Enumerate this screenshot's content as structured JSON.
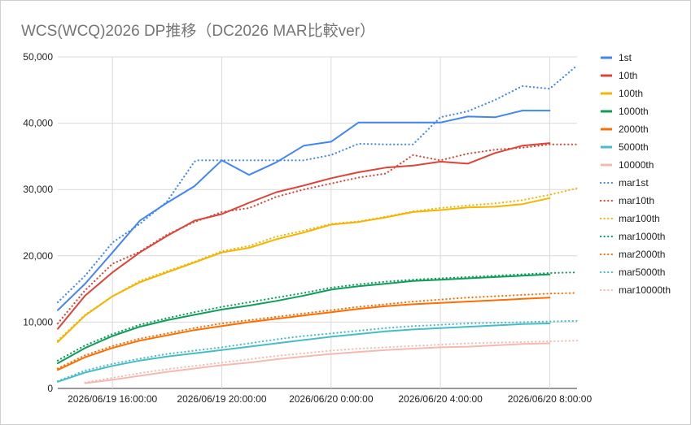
{
  "chart_data": {
    "type": "line",
    "title": "WCS(WCQ)2026 DP推移（DC2026 MAR比較ver）",
    "xlabel": "",
    "ylabel": "",
    "ylim": [
      0,
      50000
    ],
    "y_ticks": [
      "0",
      "10,000",
      "20,000",
      "30,000",
      "40,000",
      "50,000"
    ],
    "y_tick_values": [
      0,
      10000,
      20000,
      30000,
      40000,
      50000
    ],
    "x_range_hours": [
      0,
      19
    ],
    "x_tick_labels": [
      "2026/06/19 16:00:00",
      "2026/06/19 20:00:00",
      "2026/06/20 0:00:00",
      "2026/06/20 4:00:00",
      "2026/06/20 8:00:00"
    ],
    "x_tick_hours": [
      2,
      6,
      10,
      14,
      18
    ],
    "x_axis_start": "2026/06/19 14:00:00",
    "grid": true,
    "legend_position": "right",
    "series": [
      {
        "name": "1st",
        "color": "#4285f4",
        "style": "solid",
        "x": [
          0,
          1,
          2,
          3,
          4,
          5,
          6,
          7,
          8,
          9,
          10,
          11,
          12,
          13,
          14,
          15,
          16,
          17,
          18
        ],
        "y": [
          11800,
          15800,
          20500,
          25300,
          28000,
          30500,
          34400,
          32200,
          34100,
          36600,
          37200,
          40100,
          40100,
          40100,
          40100,
          41000,
          40900,
          41900,
          41900
        ]
      },
      {
        "name": "10th",
        "color": "#db4437",
        "style": "solid",
        "x": [
          0,
          1,
          2,
          3,
          4,
          5,
          6,
          7,
          8,
          9,
          10,
          11,
          12,
          13,
          14,
          15,
          16,
          17,
          18
        ],
        "y": [
          9000,
          14000,
          17500,
          20500,
          23000,
          25300,
          26300,
          28000,
          29600,
          30600,
          31700,
          32600,
          33300,
          33600,
          34200,
          33900,
          35500,
          36600,
          37000
        ]
      },
      {
        "name": "100th",
        "color": "#f4b400",
        "style": "solid",
        "x": [
          0,
          1,
          2,
          3,
          4,
          5,
          6,
          7,
          8,
          9,
          10,
          11,
          12,
          13,
          14,
          15,
          16,
          17,
          18
        ],
        "y": [
          7000,
          11000,
          13900,
          16000,
          17500,
          19000,
          20500,
          21200,
          22500,
          23500,
          24700,
          25100,
          25800,
          26600,
          26900,
          27300,
          27400,
          27800,
          28700
        ]
      },
      {
        "name": "1000th",
        "color": "#0f9d58",
        "style": "solid",
        "x": [
          0,
          1,
          2,
          3,
          4,
          5,
          6,
          7,
          8,
          9,
          10,
          11,
          12,
          13,
          14,
          15,
          16,
          17,
          18
        ],
        "y": [
          3800,
          6100,
          7900,
          9300,
          10300,
          11100,
          11900,
          12500,
          13200,
          14000,
          14900,
          15400,
          15800,
          16200,
          16400,
          16600,
          16800,
          17000,
          17200
        ]
      },
      {
        "name": "2000th",
        "color": "#ff6d01",
        "style": "solid",
        "x": [
          0,
          1,
          2,
          3,
          4,
          5,
          6,
          7,
          8,
          9,
          10,
          11,
          12,
          13,
          14,
          15,
          16,
          17,
          18
        ],
        "y": [
          2800,
          4700,
          6100,
          7200,
          8000,
          8800,
          9400,
          10000,
          10500,
          11000,
          11500,
          12000,
          12400,
          12700,
          12900,
          13100,
          13300,
          13500,
          13700
        ]
      },
      {
        "name": "5000th",
        "color": "#46bdc6",
        "style": "solid",
        "x": [
          0,
          1,
          2,
          3,
          4,
          5,
          6,
          7,
          8,
          9,
          10,
          11,
          12,
          13,
          14,
          15,
          16,
          17,
          18
        ],
        "y": [
          1000,
          2400,
          3400,
          4200,
          4800,
          5300,
          5800,
          6300,
          6800,
          7300,
          7800,
          8200,
          8600,
          8900,
          9100,
          9300,
          9500,
          9700,
          9800
        ]
      },
      {
        "name": "10000th",
        "color": "#f4b9b1",
        "style": "solid",
        "x": [
          1,
          2,
          3,
          4,
          5,
          6,
          7,
          8,
          9,
          10,
          11,
          12,
          13,
          14,
          15,
          16,
          17,
          18
        ],
        "y": [
          800,
          1300,
          1900,
          2500,
          3000,
          3500,
          3900,
          4400,
          4800,
          5200,
          5500,
          5800,
          6000,
          6200,
          6300,
          6500,
          6700,
          6800
        ]
      },
      {
        "name": "mar1st",
        "color": "#4285f4",
        "style": "dotted",
        "x": [
          0,
          1,
          2,
          3,
          4,
          5,
          5.1,
          6,
          7,
          8,
          9,
          10,
          11,
          12,
          13,
          14,
          15,
          16,
          17,
          18,
          19
        ],
        "y": [
          13000,
          17000,
          22000,
          24800,
          28200,
          34200,
          34400,
          34400,
          34400,
          34400,
          34400,
          35200,
          36900,
          36800,
          36800,
          40900,
          41800,
          43500,
          45600,
          45200,
          48700
        ]
      },
      {
        "name": "mar10th",
        "color": "#db4437",
        "style": "dotted",
        "x": [
          0,
          1,
          2,
          3,
          4,
          5,
          6,
          7,
          8,
          9,
          10,
          11,
          12,
          13,
          14,
          15,
          16,
          17,
          18,
          19
        ],
        "y": [
          9800,
          14800,
          18800,
          20600,
          23200,
          25100,
          26600,
          27200,
          28900,
          30000,
          30900,
          31800,
          32400,
          35200,
          34400,
          35400,
          36000,
          36300,
          36800,
          36800
        ]
      },
      {
        "name": "mar100th",
        "color": "#f4b400",
        "style": "dotted",
        "x": [
          0,
          1,
          2,
          3,
          4,
          5,
          6,
          7,
          8,
          9,
          10,
          11,
          12,
          13,
          14,
          15,
          16,
          17,
          18,
          19
        ],
        "y": [
          7200,
          11100,
          13900,
          16200,
          17700,
          19100,
          20700,
          21500,
          22900,
          23800,
          24800,
          25200,
          25900,
          26700,
          27200,
          27600,
          27900,
          28400,
          29200,
          30200
        ]
      },
      {
        "name": "mar1000th",
        "color": "#0f9d58",
        "style": "dotted",
        "x": [
          0,
          1,
          2,
          3,
          4,
          5,
          6,
          7,
          8,
          9,
          10,
          11,
          12,
          13,
          14,
          15,
          16,
          17,
          18,
          19
        ],
        "y": [
          4200,
          6500,
          8200,
          9600,
          10600,
          11500,
          12300,
          13000,
          13700,
          14400,
          15200,
          15700,
          16100,
          16400,
          16600,
          16800,
          17000,
          17200,
          17400,
          17500
        ]
      },
      {
        "name": "mar2000th",
        "color": "#ff6d01",
        "style": "dotted",
        "x": [
          0,
          1,
          2,
          3,
          4,
          5,
          6,
          7,
          8,
          9,
          10,
          11,
          12,
          13,
          14,
          15,
          16,
          17,
          18,
          19
        ],
        "y": [
          3000,
          5000,
          6400,
          7500,
          8300,
          9100,
          9800,
          10300,
          10800,
          11300,
          11800,
          12300,
          12700,
          13100,
          13400,
          13700,
          13900,
          14100,
          14300,
          14400
        ]
      },
      {
        "name": "mar5000th",
        "color": "#46bdc6",
        "style": "dotted",
        "x": [
          0,
          1,
          2,
          3,
          4,
          5,
          6,
          7,
          8,
          9,
          10,
          11,
          12,
          13,
          14,
          15,
          16,
          17,
          18,
          19
        ],
        "y": [
          1100,
          2700,
          3700,
          4500,
          5200,
          5700,
          6200,
          6800,
          7400,
          7900,
          8300,
          8700,
          9100,
          9400,
          9600,
          9800,
          9900,
          10000,
          10100,
          10200
        ]
      },
      {
        "name": "mar10000th",
        "color": "#f4b9b1",
        "style": "dotted",
        "x": [
          1,
          2,
          3,
          4,
          5,
          6,
          7,
          8,
          9,
          10,
          11,
          12,
          13,
          14,
          15,
          16,
          17,
          18,
          19
        ],
        "y": [
          900,
          1600,
          2300,
          2900,
          3400,
          3900,
          4400,
          4900,
          5300,
          5700,
          6000,
          6200,
          6400,
          6600,
          6800,
          6900,
          7000,
          7100,
          7200
        ]
      }
    ]
  }
}
